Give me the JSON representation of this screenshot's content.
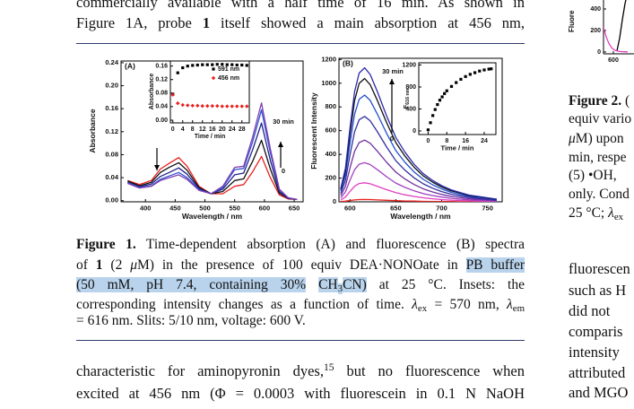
{
  "left": {
    "top_lines": [
      [
        {
          "t": "commercially available with a half time of 16 min. As shown in"
        }
      ],
      [
        {
          "t": "Figure 1A, probe "
        },
        {
          "t": "1",
          "s": "b"
        },
        {
          "t": " itself showed a main absorption at 456 nm,"
        }
      ]
    ],
    "caption": [
      [
        {
          "t": "Figure 1.",
          "s": "b"
        },
        {
          "t": " Time-dependent absorption (A) and fluorescence (B) spectra"
        }
      ],
      [
        {
          "t": "of "
        },
        {
          "t": "1",
          "s": "b"
        },
        {
          "t": " (2 "
        },
        {
          "t": "μ",
          "s": "i"
        },
        {
          "t": "M) in the presence of 100 equiv DEA·NONOate in "
        },
        {
          "t": "PB buffer",
          "s": "hl"
        }
      ],
      [
        {
          "t": "(50 mM, pH 7.4, containing 30%",
          "s": "hl"
        },
        {
          "t": " "
        },
        {
          "t": "CH",
          "s": "hl"
        },
        {
          "t": "3",
          "s": "hl sub"
        },
        {
          "t": "CN)",
          "s": "hl"
        },
        {
          "t": " at 25 °C. Insets: the"
        }
      ],
      [
        {
          "t": "corresponding intensity changes as a function of time. "
        },
        {
          "t": "λ",
          "s": "i"
        },
        {
          "t": "ex",
          "s": "sub"
        },
        {
          "t": " = 570 nm, "
        },
        {
          "t": "λ",
          "s": "i"
        },
        {
          "t": "em",
          "s": "sub"
        }
      ],
      [
        {
          "t": "= 616 nm. Slits: 5/10 nm, voltage: 600 V."
        }
      ]
    ],
    "body_lines": [
      [
        {
          "t": "characteristic for aminopyronin dyes,"
        },
        {
          "t": "15",
          "s": "sup"
        },
        {
          "t": " but no fluorescence when"
        }
      ],
      [
        {
          "t": "excited at 456 nm (Φ = 0.0003 with fluorescein in 0.1 N NaOH"
        }
      ]
    ]
  },
  "right": {
    "caption": [
      [
        {
          "t": "Figure 2.",
          "s": "b"
        },
        {
          "t": " ("
        }
      ],
      [
        {
          "t": "equiv vario"
        }
      ],
      [
        {
          "t": "μ",
          "s": "i"
        },
        {
          "t": "M) upon"
        }
      ],
      [
        {
          "t": "min, respe"
        }
      ],
      [
        {
          "t": "(5) •OH,"
        }
      ],
      [
        {
          "t": "only. Cond"
        }
      ],
      [
        {
          "t": "25 °C; "
        },
        {
          "t": "λ",
          "s": "i"
        },
        {
          "t": "ex",
          "s": "sub"
        }
      ]
    ],
    "body_lines": [
      [
        {
          "t": "fluorescen"
        }
      ],
      [
        {
          "t": "such as H"
        }
      ],
      [
        {
          "t": "did not"
        }
      ],
      [
        {
          "t": "comparis"
        }
      ],
      [
        {
          "t": "intensity"
        }
      ],
      [
        {
          "t": "attributed"
        }
      ],
      [
        {
          "t": "and MGO"
        }
      ]
    ]
  },
  "chart_data": [
    {
      "type": "line",
      "label": "(A)",
      "x_label": "Wavelength / nm",
      "y_label": "Absorbance",
      "x": [
        370,
        390,
        410,
        425,
        440,
        456,
        470,
        490,
        510,
        530,
        550,
        565,
        580,
        595,
        610,
        625,
        640,
        655
      ],
      "series": [
        {
          "color": "#e8201e",
          "values": [
            0.035,
            0.028,
            0.035,
            0.055,
            0.065,
            0.075,
            0.06,
            0.025,
            0.012,
            0.012,
            0.025,
            0.028,
            0.05,
            0.077,
            0.04,
            0.01,
            0.003,
            0.002
          ]
        },
        {
          "color": "#101010",
          "values": [
            0.034,
            0.026,
            0.032,
            0.049,
            0.058,
            0.066,
            0.053,
            0.023,
            0.012,
            0.016,
            0.035,
            0.038,
            0.068,
            0.105,
            0.055,
            0.013,
            0.004,
            0.002
          ]
        },
        {
          "color": "#20208a",
          "values": [
            0.032,
            0.024,
            0.029,
            0.042,
            0.049,
            0.057,
            0.046,
            0.021,
            0.012,
            0.02,
            0.045,
            0.048,
            0.088,
            0.135,
            0.07,
            0.016,
            0.004,
            0.002
          ]
        },
        {
          "color": "#3050d0",
          "values": [
            0.031,
            0.023,
            0.026,
            0.037,
            0.043,
            0.049,
            0.04,
            0.019,
            0.012,
            0.023,
            0.054,
            0.056,
            0.102,
            0.158,
            0.083,
            0.019,
            0.005,
            0.002
          ]
        },
        {
          "color": "#8040b0",
          "values": [
            0.03,
            0.022,
            0.025,
            0.035,
            0.04,
            0.045,
            0.037,
            0.018,
            0.012,
            0.025,
            0.058,
            0.06,
            0.11,
            0.17,
            0.09,
            0.02,
            0.005,
            0.002
          ]
        }
      ],
      "xlim": [
        359,
        665
      ],
      "ylim": [
        -0.002,
        0.243
      ],
      "xticks": [
        400,
        450,
        500,
        550,
        600,
        650
      ],
      "yticks": [
        {
          "value": 0,
          "label": "0.00"
        },
        {
          "value": 0.04,
          "label": "0.04"
        },
        {
          "value": 0.08,
          "label": "0.08"
        },
        {
          "value": 0.12,
          "label": "0.12"
        },
        {
          "value": 0.16,
          "label": "0.16"
        },
        {
          "value": 0.2,
          "label": "0.20"
        },
        {
          "value": 0.24,
          "label": "0.24"
        }
      ],
      "annotations": [
        "30 min",
        "0"
      ]
    },
    {
      "type": "scatter",
      "y_label": "Absorbance",
      "x_label": "Time / min",
      "legend": "upper right",
      "x": [
        0,
        2,
        4,
        6,
        8,
        10,
        12,
        14,
        16,
        18,
        20,
        22,
        24,
        26,
        28,
        30
      ],
      "series": [
        {
          "name": "591 nm",
          "color": "#000000",
          "marker": "square",
          "values": [
            0.077,
            0.14,
            0.155,
            0.16,
            0.162,
            0.163,
            0.164,
            0.164,
            0.164,
            0.165,
            0.165,
            0.164,
            0.164,
            0.163,
            0.163,
            0.162
          ]
        },
        {
          "name": "456 nm",
          "color": "#e8201e",
          "marker": "diamond",
          "values": [
            0.075,
            0.05,
            0.045,
            0.044,
            0.043,
            0.043,
            0.042,
            0.042,
            0.042,
            0.042,
            0.041,
            0.041,
            0.041,
            0.041,
            0.041,
            0.041
          ]
        }
      ],
      "xlim": [
        -1,
        31
      ],
      "ylim": [
        -0.008,
        0.175
      ],
      "xticks": [
        0,
        4,
        8,
        12,
        16,
        20,
        24,
        28
      ],
      "yticks": [
        {
          "value": 0,
          "label": "0.00"
        },
        {
          "value": 0.04,
          "label": "0.04"
        },
        {
          "value": 0.08,
          "label": "0.08"
        },
        {
          "value": 0.12,
          "label": "0.12"
        },
        {
          "value": 0.16,
          "label": "0.16"
        }
      ]
    },
    {
      "type": "line",
      "label": "(B)",
      "x_label": "Wavelength / nm",
      "y_label": "Fluorescent Intensity",
      "x": [
        590,
        595,
        600,
        605,
        610,
        616,
        622,
        630,
        640,
        650,
        660,
        670,
        680,
        690,
        700,
        710,
        720,
        730,
        740,
        750,
        760
      ],
      "series": [
        {
          "color": "#e8201e",
          "values": [
            2,
            5,
            11,
            16,
            19,
            20,
            19,
            16,
            13,
            10,
            7,
            6,
            4,
            3,
            2,
            2,
            1,
            1,
            1,
            1,
            0
          ]
        },
        {
          "color": "#e040c0",
          "values": [
            16,
            40,
            88,
            131,
            154,
            160,
            152,
            131,
            102,
            77,
            59,
            45,
            34,
            26,
            19,
            14,
            11,
            8,
            6,
            5,
            3
          ]
        },
        {
          "color": "#a040c0",
          "values": [
            33,
            83,
            182,
            271,
            317,
            330,
            314,
            271,
            211,
            158,
            122,
            92,
            69,
            53,
            40,
            30,
            23,
            17,
            13,
            10,
            7
          ]
        },
        {
          "color": "#7030a0",
          "values": [
            52,
            130,
            286,
            426,
            499,
            520,
            494,
            426,
            333,
            250,
            192,
            146,
            109,
            83,
            62,
            47,
            36,
            26,
            21,
            16,
            10
          ]
        },
        {
          "color": "#3030a0",
          "values": [
            72,
            180,
            396,
            590,
            691,
            720,
            684,
            590,
            461,
            346,
            266,
            202,
            151,
            115,
            86,
            65,
            50,
            36,
            29,
            22,
            14
          ]
        },
        {
          "color": "#2050d0",
          "values": [
            90,
            225,
            495,
            738,
            864,
            900,
            855,
            738,
            576,
            432,
            333,
            252,
            189,
            144,
            108,
            81,
            63,
            45,
            36,
            27,
            18
          ]
        },
        {
          "color": "#101010",
          "values": [
            104,
            260,
            572,
            853,
            998,
            1040,
            988,
            853,
            666,
            499,
            385,
            291,
            218,
            166,
            125,
            94,
            73,
            52,
            42,
            31,
            21
          ]
        },
        {
          "color": "#2a2aa8",
          "values": [
            113,
            283,
            622,
            927,
            1085,
            1130,
            1074,
            927,
            723,
            542,
            418,
            316,
            237,
            181,
            136,
            102,
            79,
            57,
            45,
            34,
            23
          ]
        }
      ],
      "xlim": [
        588,
        766
      ],
      "ylim": [
        0,
        1210
      ],
      "xticks": [
        600,
        650,
        700,
        750
      ],
      "yticks": [
        0,
        200,
        400,
        600,
        800,
        1000,
        1200
      ],
      "annotations": [
        "30 min",
        "0"
      ]
    },
    {
      "type": "scatter",
      "y_label": "F",
      "y_label_sub": "616 nm",
      "x_label": "Time / min",
      "x": [
        0,
        1,
        2,
        3,
        4,
        5,
        6,
        7,
        8,
        10,
        12,
        14,
        16,
        18,
        20,
        22,
        24,
        26,
        27
      ],
      "series": [
        {
          "color": "#000000",
          "marker": "square",
          "values": [
            20,
            150,
            280,
            390,
            480,
            560,
            620,
            680,
            730,
            810,
            880,
            940,
            990,
            1030,
            1060,
            1090,
            1110,
            1125,
            1130
          ]
        }
      ],
      "xlim": [
        -4,
        29
      ],
      "ylim": [
        -65,
        1240
      ],
      "xticks": [
        0,
        8,
        16,
        24
      ],
      "yticks": [
        0,
        400,
        800,
        1200
      ]
    },
    {
      "type": "line",
      "y_label": "Fluore",
      "x": [
        589,
        592,
        595,
        598,
        601,
        604,
        607,
        610,
        613,
        616
      ],
      "series": [
        {
          "color": "#000000",
          "values": [
            null,
            null,
            null,
            null,
            null,
            10,
            130,
            300,
            450,
            560
          ]
        },
        {
          "color": "#e040c0",
          "values": [
            230,
            140,
            80,
            40,
            20,
            10,
            5,
            3,
            2,
            1
          ]
        }
      ],
      "xlim": [
        589,
        623
      ],
      "ylim": [
        -17,
        525
      ],
      "xticks": [
        600
      ],
      "yticks": [
        0,
        200,
        400
      ]
    }
  ]
}
